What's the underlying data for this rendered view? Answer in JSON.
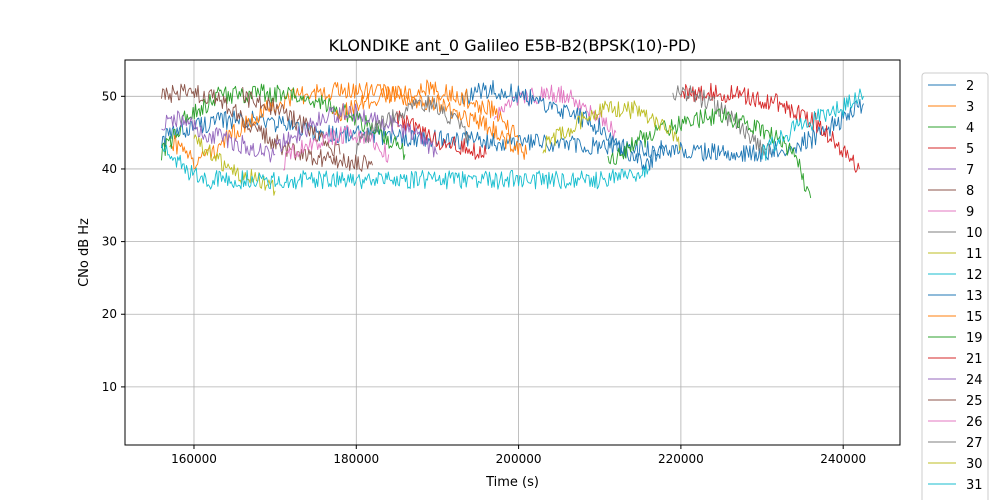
{
  "chart_data": {
    "type": "line",
    "title": "KLONDIKE ant_0 Galileo E5B-B2(BPSK(10)-PD)",
    "xlabel": "Time (s)",
    "ylabel": "CNo dB Hz",
    "xlim": [
      151500,
      247000
    ],
    "ylim": [
      2,
      55
    ],
    "x_ticks": [
      160000,
      180000,
      200000,
      220000,
      240000
    ],
    "y_ticks": [
      10,
      20,
      30,
      40,
      50
    ],
    "grid": true,
    "legend_position": "right",
    "series": [
      {
        "name": "2",
        "color": "#1f77b4",
        "x": [
          156000,
          160000,
          166000,
          172000,
          175000,
          230000,
          236000,
          240000,
          242500
        ],
        "values": [
          44,
          46,
          47,
          46,
          45,
          42,
          44,
          47,
          49
        ]
      },
      {
        "name": "3",
        "color": "#ff7f0e",
        "x": [
          157000,
          160000,
          163000,
          167000,
          172000,
          178000,
          184000,
          190000,
          196000,
          201000
        ],
        "values": [
          44,
          41,
          43,
          47,
          50,
          51,
          50.5,
          49,
          46,
          42
        ]
      },
      {
        "name": "4",
        "color": "#2ca02c",
        "x": [
          156000,
          159000,
          163000,
          168000,
          173000,
          178000,
          183000,
          186000
        ],
        "values": [
          42,
          47,
          50,
          50.5,
          50,
          48,
          45,
          42
        ]
      },
      {
        "name": "5",
        "color": "#d62728",
        "x": [
          220000,
          224000,
          228000,
          232000,
          236000,
          239000,
          242000
        ],
        "values": [
          50.5,
          50.5,
          50,
          49,
          47,
          44,
          40
        ]
      },
      {
        "name": "7",
        "color": "#9467bd",
        "x": [
          156000,
          158000,
          161000,
          164000,
          167000,
          170000
        ],
        "values": [
          46,
          47,
          45,
          44,
          43,
          42
        ]
      },
      {
        "name": "8",
        "color": "#8c564b",
        "x": [
          156000,
          159000,
          162000,
          165000,
          168000,
          171000,
          174000,
          178000,
          182000
        ],
        "values": [
          50,
          50.5,
          50,
          48,
          45,
          43,
          42,
          41,
          40.5
        ]
      },
      {
        "name": "9",
        "color": "#e377c2",
        "x": [
          197000,
          200000,
          203000,
          206000,
          209000,
          212000
        ],
        "values": [
          47,
          49.5,
          50.5,
          50,
          48,
          45
        ]
      },
      {
        "name": "10",
        "color": "#7f7f7f",
        "x": [
          219000,
          221000,
          223000,
          225000,
          227000,
          229000,
          231000
        ],
        "values": [
          50.5,
          50.5,
          49.5,
          48,
          46,
          44,
          42
        ]
      },
      {
        "name": "11",
        "color": "#bcbd22",
        "x": [
          160000,
          163000,
          166000,
          168000,
          170000
        ],
        "values": [
          44,
          41,
          39,
          38.5,
          37
        ]
      },
      {
        "name": "12",
        "color": "#17becf",
        "x": [
          156000,
          158000,
          160000,
          161000,
          200000,
          210000,
          214000,
          216000
        ],
        "values": [
          43,
          41,
          39,
          38.5,
          38.5,
          38.5,
          39,
          40
        ]
      },
      {
        "name": "13",
        "color": "#1f77b4",
        "x": [
          193000,
          197000,
          201000,
          205000,
          208000,
          211000,
          213000,
          216000,
          218000
        ],
        "values": [
          50,
          51,
          50,
          48,
          47,
          45,
          42,
          41,
          42.5
        ]
      },
      {
        "name": "15",
        "color": "#ff7f0e",
        "x": [
          177000,
          181000,
          185000,
          189000,
          193000,
          197000,
          200000
        ],
        "values": [
          47,
          49,
          50.5,
          51,
          50,
          48,
          44
        ]
      },
      {
        "name": "19",
        "color": "#2ca02c",
        "x": [
          211000,
          215000,
          219000,
          223000,
          227000,
          231000,
          234000,
          236000
        ],
        "values": [
          41,
          44,
          46,
          47,
          47,
          45,
          42,
          36
        ]
      },
      {
        "name": "21",
        "color": "#d62728",
        "x": [
          185000,
          187000,
          190000,
          193000,
          196000
        ],
        "values": [
          47,
          46,
          44,
          43,
          42
        ]
      },
      {
        "name": "24",
        "color": "#9467bd",
        "x": [
          170000,
          173000,
          176000,
          179000,
          182000,
          185000,
          188000,
          190000
        ],
        "values": [
          43,
          45,
          47,
          48,
          47,
          46,
          44,
          42
        ]
      },
      {
        "name": "25",
        "color": "#8c564b",
        "x": [
          166000,
          169000,
          172000,
          175000,
          178000
        ],
        "values": [
          50,
          49,
          47,
          45,
          42
        ]
      },
      {
        "name": "26",
        "color": "#e377c2",
        "x": [
          171000,
          173000,
          176000,
          179000,
          182000,
          184000
        ],
        "values": [
          41,
          43,
          44,
          45,
          44,
          42
        ]
      },
      {
        "name": "27",
        "color": "#7f7f7f",
        "x": [
          180000,
          183000,
          186000,
          189000,
          192000,
          194000
        ],
        "values": [
          43,
          46,
          48,
          49,
          47,
          44
        ]
      },
      {
        "name": "30",
        "color": "#bcbd22",
        "x": [
          203000,
          206000,
          209000,
          212000,
          215000,
          218000,
          220000
        ],
        "values": [
          43,
          45.5,
          47.5,
          48.5,
          48,
          46,
          43
        ]
      },
      {
        "name": "31",
        "color": "#17becf",
        "x": [
          230000,
          232000,
          234000,
          236000,
          238000,
          240000,
          242500
        ],
        "values": [
          42,
          44,
          45.5,
          46.5,
          47.5,
          48.5,
          50
        ]
      }
    ]
  }
}
